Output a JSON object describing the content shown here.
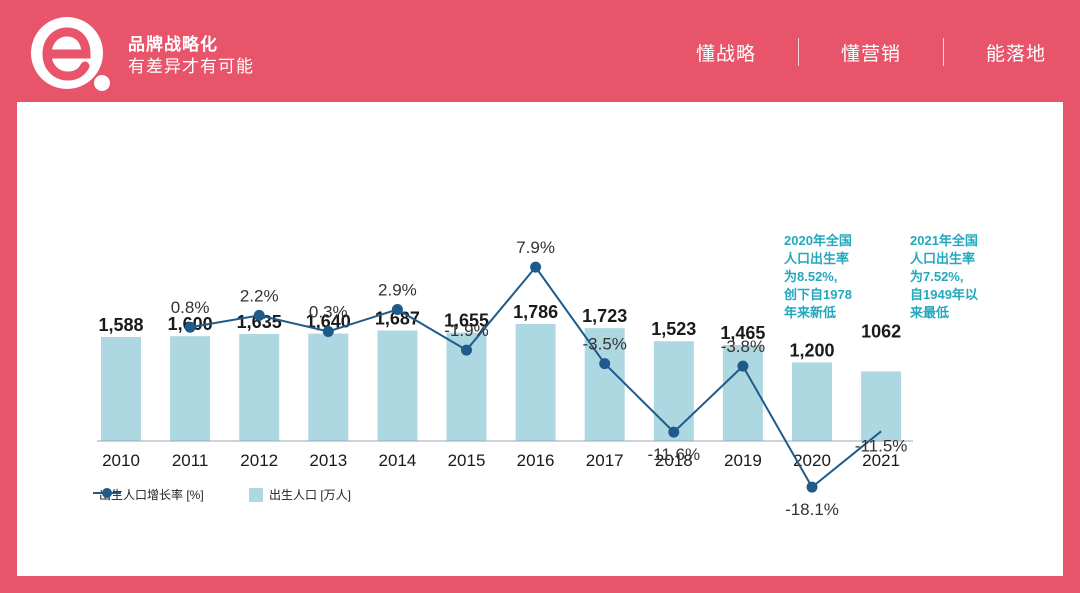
{
  "header": {
    "brand_title": "品牌战略化",
    "brand_slogan": "有差异才有可能",
    "nav": [
      "懂战略",
      "懂营销",
      "能落地"
    ]
  },
  "colors": {
    "background": "#E8546A",
    "bar": "#ADD8E2",
    "line": "#1E5A8A",
    "note": "#23A8BD"
  },
  "chart_data": {
    "type": "bar",
    "categories": [
      "2010",
      "2011",
      "2012",
      "2013",
      "2014",
      "2015",
      "2016",
      "2017",
      "2018",
      "2019",
      "2020",
      "2021"
    ],
    "series": [
      {
        "name": "出生人口 [万人]",
        "type": "bar",
        "values": [
          1588,
          1600,
          1635,
          1640,
          1687,
          1655,
          1786,
          1723,
          1523,
          1465,
          1200,
          1062
        ],
        "labels": [
          "1,588",
          "1,600",
          "1,635",
          "1,640",
          "1,687",
          "1,655",
          "1,786",
          "1,723",
          "1,523",
          "1,465",
          "1,200",
          "1062"
        ]
      },
      {
        "name": "出生人口增长率 [%]",
        "type": "line",
        "values": [
          null,
          0.8,
          2.2,
          0.3,
          2.9,
          -1.9,
          7.9,
          -3.5,
          -11.6,
          -3.8,
          -18.1,
          -11.5
        ],
        "labels": [
          "",
          "0.8%",
          "2.2%",
          "0.3%",
          "2.9%",
          "-1.9%",
          "7.9%",
          "-3.5%",
          "-11.6%",
          "-3.8%",
          "-18.1%",
          "-11.5%"
        ]
      }
    ],
    "annotations": [
      "2020年全国\n人口出生率\n为8.52%,\n创下自1978\n年来新低",
      "2021年全国\n人口出生率\n为7.52%,\n自1949年以\n来最低"
    ],
    "legend": {
      "line": "出生人口增长率 [%]",
      "bar": "出生人口 [万人]"
    }
  }
}
